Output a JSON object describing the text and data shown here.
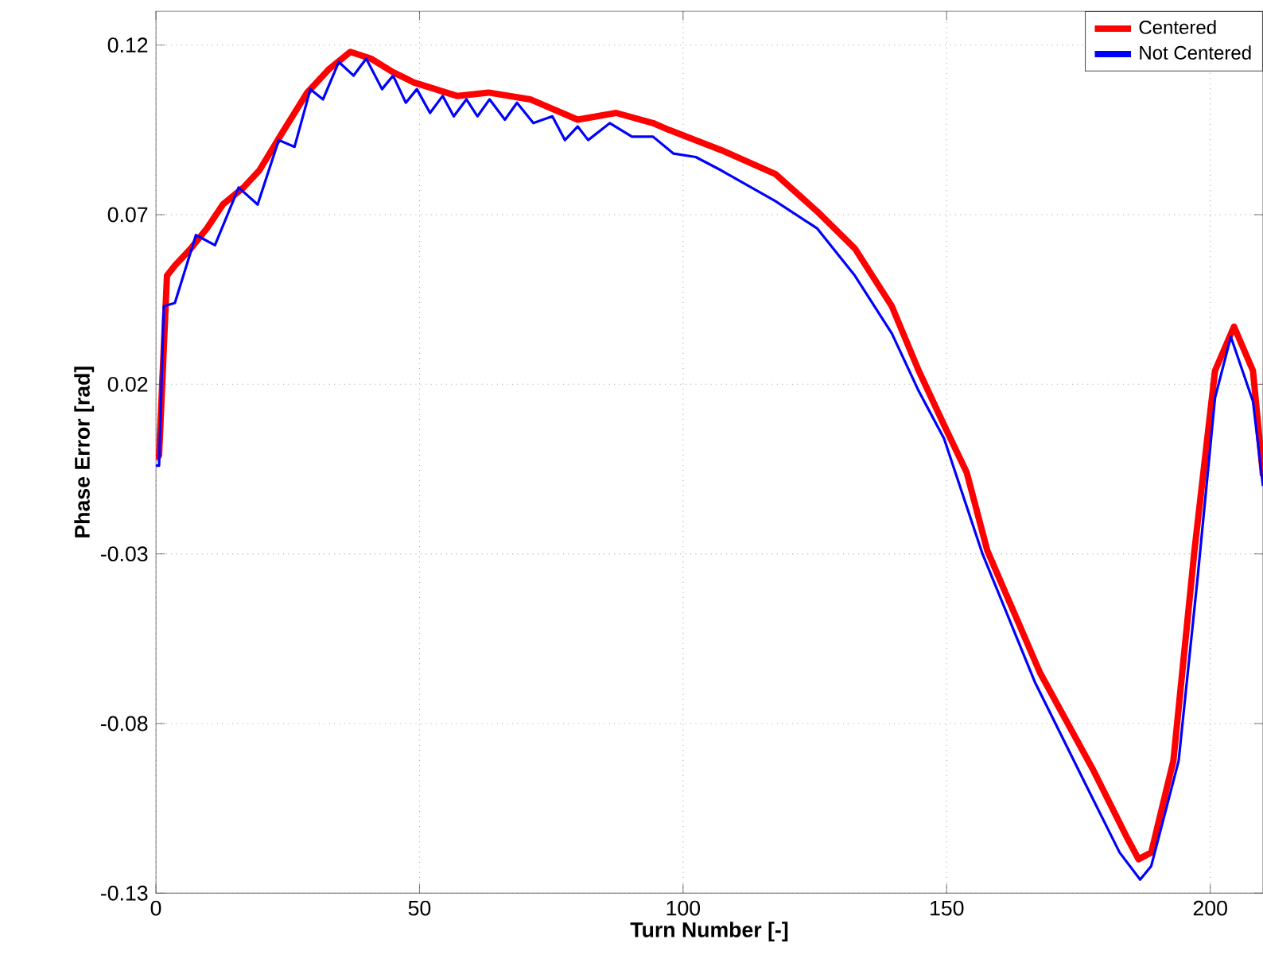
{
  "chart_data": {
    "type": "line",
    "xlabel": "Turn Number [-]",
    "ylabel": "Phase Error [rad]",
    "xlim": [
      0,
      210
    ],
    "ylim": [
      -0.13,
      0.13
    ],
    "xticks": [
      0,
      50,
      100,
      150,
      200
    ],
    "yticks": [
      0.12,
      0.07,
      0.02,
      -0.03,
      -0.08,
      -0.13
    ],
    "grid": true,
    "legend": "top right",
    "marker": "none",
    "line_style": "solid",
    "series": [
      {
        "name": "Centered",
        "color": "#ff0000",
        "x": [
          0,
          0.6,
          2.1,
          3.6,
          6.6,
          9.7,
          12.7,
          16.6,
          19.6,
          23.9,
          28.7,
          32.9,
          36.9,
          40.8,
          45,
          48.9,
          57.1,
          63.1,
          71,
          80,
          87.3,
          94.3,
          97.3,
          107.3,
          117.5,
          125.4,
          132.6,
          139.6,
          144.7,
          149.5,
          153.8,
          157.7,
          167.7,
          177.9,
          184,
          186.4,
          188.8,
          193,
          197,
          200.9,
          204.5,
          208.1,
          210
        ],
        "values": [
          -0.002,
          -0.001,
          0.052,
          0.055,
          0.06,
          0.066,
          0.073,
          0.078,
          0.083,
          0.094,
          0.106,
          0.113,
          0.118,
          0.116,
          0.112,
          0.109,
          0.105,
          0.106,
          0.104,
          0.098,
          0.1,
          0.097,
          0.095,
          0.089,
          0.082,
          0.071,
          0.06,
          0.043,
          0.024,
          0.008,
          -0.006,
          -0.029,
          -0.065,
          -0.094,
          -0.113,
          -0.12,
          -0.118,
          -0.091,
          -0.029,
          0.024,
          0.037,
          0.024,
          -0.007
        ]
      },
      {
        "name": "Not Centered",
        "color": "#0000ff",
        "x": [
          0,
          0.6,
          1.5,
          3.6,
          7.6,
          11.2,
          15.7,
          19.3,
          23.3,
          26.3,
          29.3,
          31.7,
          34.7,
          37.5,
          39.9,
          42.9,
          45,
          47.4,
          49.5,
          52,
          54.4,
          56.5,
          58.9,
          61,
          63.3,
          66.2,
          68.5,
          71.6,
          75.2,
          77.6,
          80,
          82,
          86.1,
          90.3,
          94.3,
          98.2,
          102.4,
          107.3,
          117.5,
          125.4,
          132.6,
          139.6,
          144.7,
          149.5,
          156.8,
          166.8,
          176.7,
          182.8,
          186.7,
          188.8,
          194,
          197.6,
          200.9,
          203.9,
          208.1,
          210
        ],
        "values": [
          -0.004,
          -0.004,
          0.043,
          0.044,
          0.064,
          0.061,
          0.078,
          0.073,
          0.092,
          0.09,
          0.107,
          0.104,
          0.115,
          0.111,
          0.116,
          0.107,
          0.111,
          0.103,
          0.107,
          0.1,
          0.105,
          0.099,
          0.104,
          0.099,
          0.104,
          0.098,
          0.103,
          0.097,
          0.099,
          0.092,
          0.096,
          0.092,
          0.097,
          0.093,
          0.093,
          0.088,
          0.087,
          0.083,
          0.074,
          0.066,
          0.052,
          0.035,
          0.018,
          0.004,
          -0.03,
          -0.068,
          -0.099,
          -0.118,
          -0.126,
          -0.122,
          -0.091,
          -0.037,
          0.016,
          0.034,
          0.015,
          -0.01
        ]
      }
    ]
  }
}
